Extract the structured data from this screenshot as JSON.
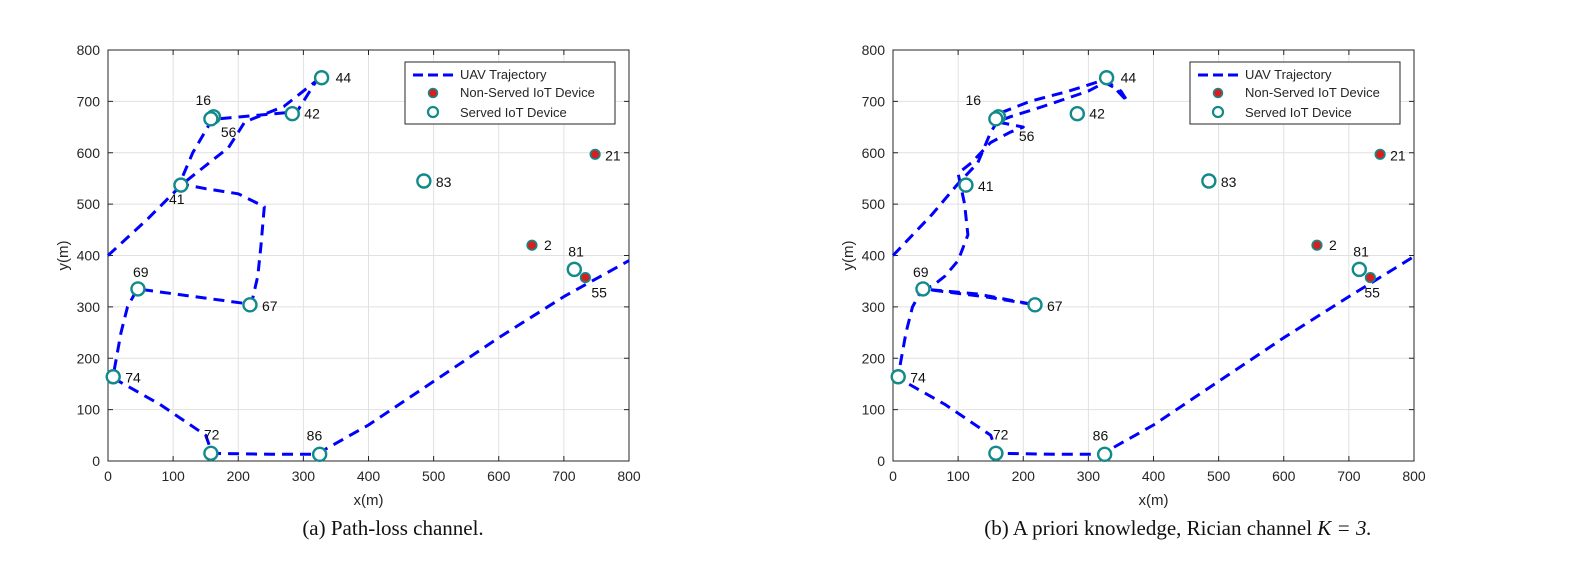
{
  "figures": [
    {
      "caption_label": "(a)",
      "caption_text": "Path-loss channel.",
      "caption_math": ""
    },
    {
      "caption_label": "(b)",
      "caption_text": "A priori knowledge, Rician channel",
      "caption_math": "K = 3."
    }
  ],
  "chart_data": [
    {
      "type": "scatter",
      "title": "",
      "xlabel": "x(m)",
      "ylabel": "y(m)",
      "xlim": [
        0,
        800
      ],
      "ylim": [
        0,
        800
      ],
      "xticks": [
        0,
        100,
        200,
        300,
        400,
        500,
        600,
        700,
        800
      ],
      "yticks": [
        0,
        100,
        200,
        300,
        400,
        500,
        600,
        700,
        800
      ],
      "grid": true,
      "legend_position": "top-right",
      "legend": [
        "UAV Trajectory",
        "Non-Served IoT Device",
        "Served IoT Device"
      ],
      "colors": {
        "trajectory": "#0000ff",
        "non_served_fill": "#d62020",
        "served_edge": "#138a8a"
      },
      "trajectory": [
        [
          0,
          400
        ],
        [
          60,
          470
        ],
        [
          115,
          540
        ],
        [
          185,
          610
        ],
        [
          210,
          660
        ],
        [
          270,
          690
        ],
        [
          320,
          740
        ],
        [
          290,
          680
        ],
        [
          160,
          665
        ],
        [
          130,
          600
        ],
        [
          110,
          540
        ],
        [
          150,
          530
        ],
        [
          200,
          520
        ],
        [
          240,
          495
        ],
        [
          235,
          420
        ],
        [
          230,
          360
        ],
        [
          220,
          305
        ],
        [
          45,
          335
        ],
        [
          30,
          300
        ],
        [
          20,
          250
        ],
        [
          10,
          180
        ],
        [
          10,
          160
        ],
        [
          80,
          110
        ],
        [
          150,
          50
        ],
        [
          160,
          15
        ],
        [
          250,
          13
        ],
        [
          320,
          13
        ],
        [
          400,
          70
        ],
        [
          500,
          155
        ],
        [
          600,
          240
        ],
        [
          700,
          320
        ],
        [
          800,
          390
        ]
      ],
      "devices": [
        {
          "id": "44",
          "x": 328,
          "y": 746,
          "served": true
        },
        {
          "id": "16",
          "x": 162,
          "y": 670,
          "served": true
        },
        {
          "id": "56",
          "x": 158,
          "y": 666,
          "served": true
        },
        {
          "id": "42",
          "x": 283,
          "y": 676,
          "served": true
        },
        {
          "id": "21",
          "x": 748,
          "y": 597,
          "served": false
        },
        {
          "id": "41",
          "x": 112,
          "y": 537,
          "served": true
        },
        {
          "id": "83",
          "x": 485,
          "y": 545,
          "served": true
        },
        {
          "id": "2",
          "x": 651,
          "y": 420,
          "served": false
        },
        {
          "id": "81",
          "x": 716,
          "y": 373,
          "served": true
        },
        {
          "id": "55",
          "x": 733,
          "y": 357,
          "served": false
        },
        {
          "id": "69",
          "x": 46,
          "y": 335,
          "served": true
        },
        {
          "id": "67",
          "x": 218,
          "y": 304,
          "served": true
        },
        {
          "id": "74",
          "x": 8,
          "y": 164,
          "served": true
        },
        {
          "id": "72",
          "x": 158,
          "y": 15,
          "served": true
        },
        {
          "id": "86",
          "x": 325,
          "y": 13,
          "served": true
        }
      ]
    },
    {
      "type": "scatter",
      "title": "",
      "xlabel": "x(m)",
      "ylabel": "y(m)",
      "xlim": [
        0,
        800
      ],
      "ylim": [
        0,
        800
      ],
      "xticks": [
        0,
        100,
        200,
        300,
        400,
        500,
        600,
        700,
        800
      ],
      "yticks": [
        0,
        100,
        200,
        300,
        400,
        500,
        600,
        700,
        800
      ],
      "grid": true,
      "legend_position": "top-right",
      "legend": [
        "UAV Trajectory",
        "Non-Served IoT Device",
        "Served IoT Device"
      ],
      "colors": {
        "trajectory": "#0000ff",
        "non_served_fill": "#d62020",
        "served_edge": "#138a8a"
      },
      "trajectory": [
        [
          0,
          400
        ],
        [
          60,
          480
        ],
        [
          100,
          540
        ],
        [
          130,
          580
        ],
        [
          150,
          640
        ],
        [
          170,
          680
        ],
        [
          210,
          700
        ],
        [
          270,
          720
        ],
        [
          320,
          740
        ],
        [
          350,
          720
        ],
        [
          360,
          700
        ],
        [
          330,
          740
        ],
        [
          300,
          720
        ],
        [
          230,
          690
        ],
        [
          180,
          670
        ],
        [
          160,
          660
        ],
        [
          200,
          650
        ],
        [
          180,
          640
        ],
        [
          150,
          620
        ],
        [
          120,
          580
        ],
        [
          100,
          560
        ],
        [
          110,
          500
        ],
        [
          115,
          440
        ],
        [
          100,
          390
        ],
        [
          80,
          360
        ],
        [
          60,
          340
        ],
        [
          45,
          335
        ],
        [
          130,
          325
        ],
        [
          218,
          304
        ],
        [
          140,
          320
        ],
        [
          45,
          335
        ],
        [
          30,
          300
        ],
        [
          20,
          250
        ],
        [
          10,
          180
        ],
        [
          10,
          160
        ],
        [
          80,
          110
        ],
        [
          150,
          50
        ],
        [
          160,
          15
        ],
        [
          250,
          13
        ],
        [
          320,
          13
        ],
        [
          400,
          70
        ],
        [
          500,
          155
        ],
        [
          600,
          240
        ],
        [
          700,
          320
        ],
        [
          800,
          398
        ]
      ],
      "devices": [
        {
          "id": "44",
          "x": 328,
          "y": 746,
          "served": true
        },
        {
          "id": "16",
          "x": 162,
          "y": 670,
          "served": true
        },
        {
          "id": "56",
          "x": 158,
          "y": 666,
          "served": true
        },
        {
          "id": "42",
          "x": 283,
          "y": 676,
          "served": true
        },
        {
          "id": "21",
          "x": 748,
          "y": 597,
          "served": false
        },
        {
          "id": "41",
          "x": 112,
          "y": 537,
          "served": true
        },
        {
          "id": "83",
          "x": 485,
          "y": 545,
          "served": true
        },
        {
          "id": "2",
          "x": 651,
          "y": 420,
          "served": false
        },
        {
          "id": "81",
          "x": 716,
          "y": 373,
          "served": true
        },
        {
          "id": "55",
          "x": 733,
          "y": 357,
          "served": false
        },
        {
          "id": "69",
          "x": 46,
          "y": 335,
          "served": true
        },
        {
          "id": "67",
          "x": 218,
          "y": 304,
          "served": true
        },
        {
          "id": "74",
          "x": 8,
          "y": 164,
          "served": true
        },
        {
          "id": "72",
          "x": 158,
          "y": 15,
          "served": true
        },
        {
          "id": "86",
          "x": 325,
          "y": 13,
          "served": true
        }
      ]
    }
  ]
}
